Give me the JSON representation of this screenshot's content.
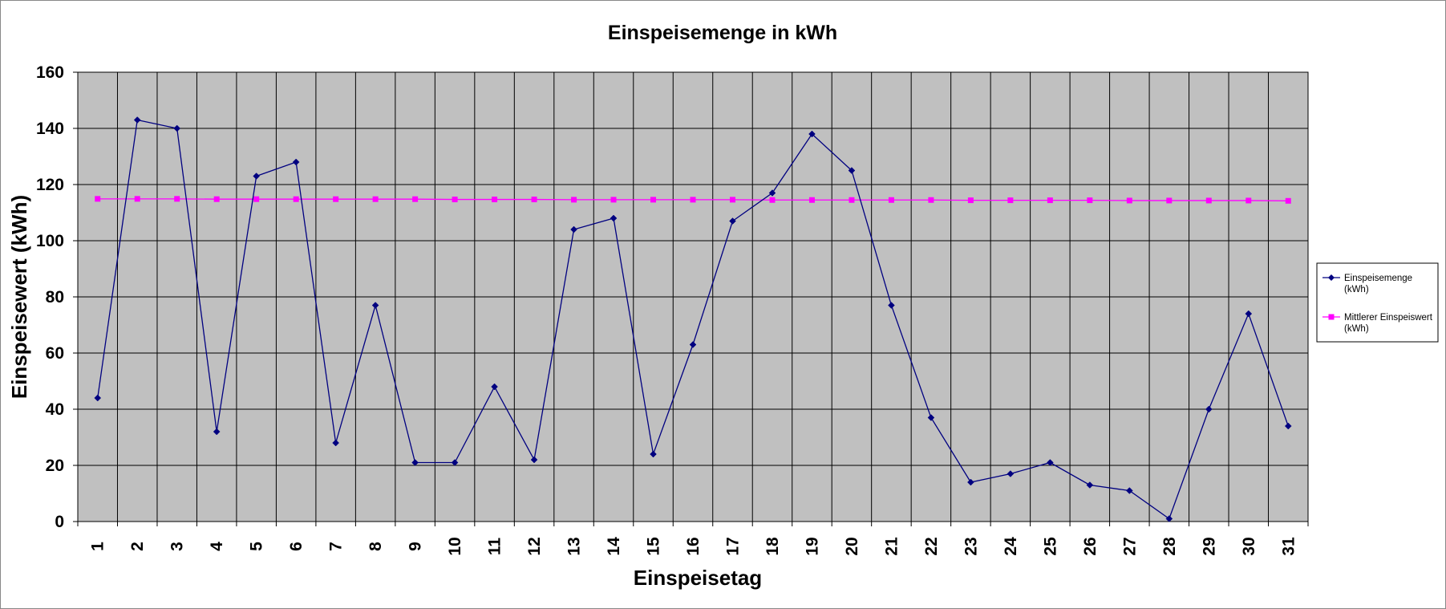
{
  "chart_data": {
    "type": "line",
    "title": "Einspeisemenge in kWh",
    "xlabel": "Einspeisetag",
    "ylabel": "Einspeisewert  (kWh)",
    "categories": [
      "1",
      "2",
      "3",
      "4",
      "5",
      "6",
      "7",
      "8",
      "9",
      "10",
      "11",
      "12",
      "13",
      "14",
      "15",
      "16",
      "17",
      "18",
      "19",
      "20",
      "21",
      "22",
      "23",
      "24",
      "25",
      "26",
      "27",
      "28",
      "29",
      "30",
      "31"
    ],
    "ylim": [
      0,
      160
    ],
    "yticks": [
      "0",
      "20",
      "40",
      "60",
      "80",
      "100",
      "120",
      "140",
      "160"
    ],
    "grid": true,
    "legend_position": "right",
    "series": [
      {
        "name": "Einspeisemenge (kWh)",
        "legend_lines": [
          "Einspeisemenge",
          "(kWh)"
        ],
        "color": "#000080",
        "marker": "diamond",
        "values": [
          44,
          143,
          140,
          32,
          123,
          128,
          28,
          77,
          21,
          21,
          48,
          22,
          104,
          108,
          24,
          63,
          107,
          117,
          138,
          125,
          77,
          37,
          14,
          17,
          21,
          13,
          11,
          1,
          40,
          74,
          34
        ]
      },
      {
        "name": "Mittlerer Einspeiswert (kWh)",
        "legend_lines": [
          "Mittlerer Einspeiswert",
          "(kWh)"
        ],
        "color": "#ff00ff",
        "marker": "square",
        "values": [
          114.9,
          114.9,
          114.9,
          114.8,
          114.8,
          114.8,
          114.8,
          114.8,
          114.8,
          114.7,
          114.7,
          114.7,
          114.6,
          114.6,
          114.6,
          114.6,
          114.6,
          114.5,
          114.5,
          114.5,
          114.5,
          114.5,
          114.4,
          114.4,
          114.4,
          114.4,
          114.3,
          114.3,
          114.3,
          114.3,
          114.2
        ]
      }
    ],
    "colors": {
      "plot_background": "#c0c0c0",
      "gridline": "#000000",
      "frame_border": "#888888"
    }
  }
}
